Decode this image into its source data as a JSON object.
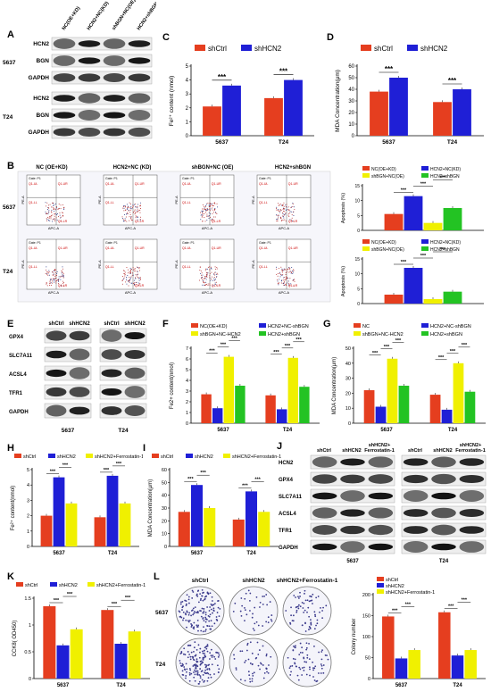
{
  "panels": {
    "A": {
      "label": "A",
      "cols": [
        "NC(OE+KD)",
        "HCN2+NC(KD)",
        "shBGN+NC(OE)",
        "HCN2+shBGN"
      ],
      "groups": [
        {
          "cell": "5637",
          "rows": [
            "HCN2",
            "BGN",
            "GAPDH"
          ]
        },
        {
          "cell": "T24",
          "rows": [
            "HCN2",
            "BGN",
            "GAPDH"
          ]
        }
      ]
    },
    "B": {
      "label": "B",
      "cols": [
        "NC (OE+KD)",
        "HCN2+NC (KD)",
        "shBGN+NC (OE)",
        "HCN2+shBGN"
      ],
      "rows": [
        "5637",
        "T24"
      ],
      "gate": "Gate: P1",
      "quads": [
        "Q1-UL",
        "Q1-UR",
        "Q1-LL",
        "Q1-LR"
      ],
      "xaxis": "APC-A",
      "yaxis": "PE-A",
      "legend": [
        "NC(OE+KD)",
        "shBGN+NC(OE)",
        "HCN2+NC(KD)",
        "HCN2+shBGN"
      ],
      "ylabel": "Apoptosis (%)"
    },
    "E": {
      "label": "E",
      "cols": [
        "shCtrl",
        "shHCN2"
      ],
      "rows": [
        "GPX4",
        "SLC7A11",
        "ACSL4",
        "TFR1",
        "GAPDH"
      ],
      "cells": [
        "5637",
        "T24"
      ]
    },
    "J": {
      "label": "J",
      "cols": [
        "shCtrl",
        "shHCN2",
        "shHCN2+ Ferrostatin-1"
      ],
      "rows": [
        "HCN2",
        "GPX4",
        "SLC7A11",
        "ACSL4",
        "TFR1",
        "GAPDH"
      ],
      "cells": [
        "5637",
        "T24"
      ]
    },
    "L": {
      "label": "L",
      "cols": [
        "shCtrl",
        "shHCN2",
        "shHCN2+Ferrostatin-1"
      ],
      "rows": [
        "5637",
        "T24"
      ]
    }
  },
  "sig": "***",
  "chart_data": [
    {
      "id": "C",
      "type": "bar",
      "ylabel": "Fe²⁺ content (nmol)",
      "categories": [
        "5637",
        "T24"
      ],
      "ylim": [
        0,
        5
      ],
      "ticks": [
        0,
        1,
        2,
        3,
        4,
        5
      ],
      "series": [
        {
          "name": "shCtrl",
          "color": "#e53e1f",
          "values": [
            2.1,
            2.7
          ]
        },
        {
          "name": "shHCN2",
          "color": "#1f1fd6",
          "values": [
            3.6,
            4.0
          ]
        }
      ]
    },
    {
      "id": "D",
      "type": "bar",
      "ylabel": "MDA Concentration(μm)",
      "categories": [
        "5637",
        "T24"
      ],
      "ylim": [
        0,
        60
      ],
      "ticks": [
        0,
        10,
        20,
        30,
        40,
        50,
        60
      ],
      "series": [
        {
          "name": "shCtrl",
          "color": "#e53e1f",
          "values": [
            38,
            29
          ]
        },
        {
          "name": "shHCN2",
          "color": "#1f1fd6",
          "values": [
            50,
            40
          ]
        }
      ]
    },
    {
      "id": "B1",
      "type": "bar",
      "ylabel": "Apoptosis (%)",
      "categories": [
        ""
      ],
      "ylim": [
        0,
        15
      ],
      "ticks": [
        0,
        5,
        10,
        15
      ],
      "series": [
        {
          "name": "NC(OE+KD)",
          "color": "#e53e1f",
          "values": [
            5.5
          ]
        },
        {
          "name": "HCN2+NC(KD)",
          "color": "#1f1fd6",
          "values": [
            11.5
          ]
        },
        {
          "name": "shBGN+NC(OE)",
          "color": "#f0f000",
          "values": [
            2.5
          ]
        },
        {
          "name": "HCN2+shBGN",
          "color": "#23c323",
          "values": [
            7.5
          ]
        }
      ]
    },
    {
      "id": "B2",
      "type": "bar",
      "ylabel": "Apoptosis (%)",
      "categories": [
        ""
      ],
      "ylim": [
        0,
        15
      ],
      "ticks": [
        0,
        5,
        10,
        15
      ],
      "series": [
        {
          "name": "NC(OE+KD)",
          "color": "#e53e1f",
          "values": [
            3
          ]
        },
        {
          "name": "HCN2+NC(KD)",
          "color": "#1f1fd6",
          "values": [
            12
          ]
        },
        {
          "name": "shBGN+NC(OE)",
          "color": "#f0f000",
          "values": [
            1.5
          ]
        },
        {
          "name": "HCN2+shBGN",
          "color": "#23c323",
          "values": [
            4
          ]
        }
      ]
    },
    {
      "id": "F",
      "type": "bar",
      "ylabel": "Fe2+ content(nmol)",
      "categories": [
        "5637",
        "T24"
      ],
      "ylim": [
        0,
        7
      ],
      "ticks": [
        0,
        1,
        2,
        3,
        4,
        5,
        6,
        7
      ],
      "series": [
        {
          "name": "NC(OE+KD)",
          "color": "#e53e1f",
          "values": [
            2.7,
            2.6
          ]
        },
        {
          "name": "HCN2+NC-shBGN",
          "color": "#1f1fd6",
          "values": [
            1.4,
            1.3
          ]
        },
        {
          "name": "shBGN+NC-HCN2",
          "color": "#f0f000",
          "values": [
            6.2,
            6.1
          ]
        },
        {
          "name": "HCN2+shBGN",
          "color": "#23c323",
          "values": [
            3.5,
            3.4
          ]
        }
      ]
    },
    {
      "id": "G",
      "type": "bar",
      "ylabel": "MDA Concentration(μm)",
      "categories": [
        "5637",
        "T24"
      ],
      "ylim": [
        0,
        50
      ],
      "ticks": [
        0,
        10,
        20,
        30,
        40,
        50
      ],
      "series": [
        {
          "name": "NC",
          "color": "#e53e1f",
          "values": [
            22,
            19
          ]
        },
        {
          "name": "HCN2+NC-shBGN",
          "color": "#1f1fd6",
          "values": [
            11,
            9
          ]
        },
        {
          "name": "shBGN+NC-HCN2",
          "color": "#f0f000",
          "values": [
            43,
            40
          ]
        },
        {
          "name": "HCN2+shBGN",
          "color": "#23c323",
          "values": [
            25,
            21
          ]
        }
      ]
    },
    {
      "id": "H",
      "type": "bar",
      "ylabel": "Fe²⁺ content(nmol)",
      "categories": [
        "5637",
        "T24"
      ],
      "ylim": [
        0,
        5
      ],
      "ticks": [
        0,
        1,
        2,
        3,
        4,
        5
      ],
      "series": [
        {
          "name": "shCtrl",
          "color": "#e53e1f",
          "values": [
            2.0,
            1.9
          ]
        },
        {
          "name": "shHCN2",
          "color": "#1f1fd6",
          "values": [
            4.5,
            4.6
          ]
        },
        {
          "name": "shHCN2+Ferrostatin-1",
          "color": "#f0f000",
          "values": [
            2.8,
            2.8
          ]
        }
      ]
    },
    {
      "id": "I",
      "type": "bar",
      "ylabel": "MDA Concentration(μm)",
      "categories": [
        "5637",
        "T24"
      ],
      "ylim": [
        0,
        60
      ],
      "ticks": [
        0,
        10,
        20,
        30,
        40,
        50,
        60
      ],
      "series": [
        {
          "name": "shCtrl",
          "color": "#e53e1f",
          "values": [
            27,
            21
          ]
        },
        {
          "name": "shHCN2",
          "color": "#1f1fd6",
          "values": [
            48,
            43
          ]
        },
        {
          "name": "shHCN2+Ferrostatin-1",
          "color": "#f0f000",
          "values": [
            30,
            27
          ]
        }
      ]
    },
    {
      "id": "K",
      "type": "bar",
      "ylabel": "CCK8( OD450)",
      "categories": [
        "5637",
        "T24"
      ],
      "ylim": [
        0,
        1.5
      ],
      "ticks": [
        0.0,
        0.5,
        1.0,
        1.5
      ],
      "series": [
        {
          "name": "shCtrl",
          "color": "#e53e1f",
          "values": [
            1.35,
            1.28
          ]
        },
        {
          "name": "shHCN2",
          "color": "#1f1fd6",
          "values": [
            0.62,
            0.65
          ]
        },
        {
          "name": "shHCN2+Ferrostatin-1",
          "color": "#f0f000",
          "values": [
            0.92,
            0.88
          ]
        }
      ]
    },
    {
      "id": "L2",
      "type": "bar",
      "ylabel": "Colony number",
      "categories": [
        "5637",
        "T24"
      ],
      "ylim": [
        0,
        200
      ],
      "ticks": [
        0,
        50,
        100,
        150,
        200
      ],
      "series": [
        {
          "name": "shCtrl",
          "color": "#e53e1f",
          "values": [
            148,
            158
          ]
        },
        {
          "name": "shHCN2",
          "color": "#1f1fd6",
          "values": [
            48,
            55
          ]
        },
        {
          "name": "shHCN2+Ferrostatin-1",
          "color": "#f0f000",
          "values": [
            68,
            68
          ]
        }
      ]
    }
  ]
}
